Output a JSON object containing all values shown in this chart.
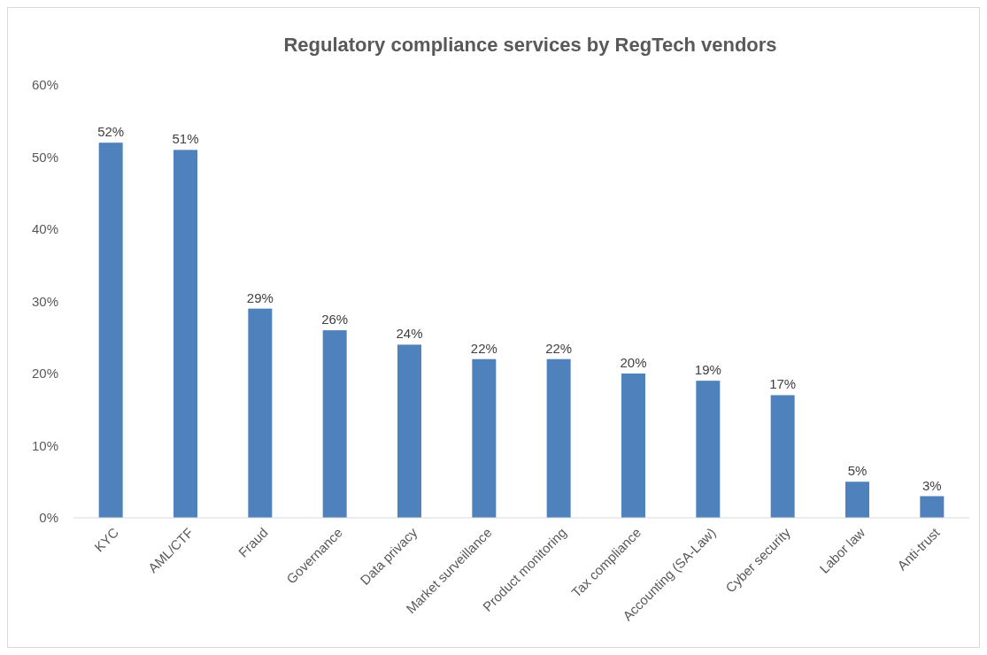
{
  "chart_data": {
    "type": "bar",
    "title": "Regulatory compliance services by RegTech vendors",
    "categories": [
      "KYC",
      "AML/CTF",
      "Fraud",
      "Governance",
      "Data privacy",
      "Market surveillance",
      "Product monitoring",
      "Tax compliance",
      "Accounting (SA-Law)",
      "Cyber security",
      "Labor law",
      "Anti-trust"
    ],
    "values": [
      52,
      51,
      29,
      26,
      24,
      22,
      22,
      20,
      19,
      17,
      5,
      3
    ],
    "value_labels": [
      "52%",
      "51%",
      "29%",
      "26%",
      "24%",
      "22%",
      "22%",
      "20%",
      "19%",
      "17%",
      "5%",
      "3%"
    ],
    "color": "#4f81bd",
    "ylim": [
      0,
      60
    ],
    "yticks": [
      {
        "value": 0,
        "label": "0%"
      },
      {
        "value": 10,
        "label": "10%"
      },
      {
        "value": 20,
        "label": "20%"
      },
      {
        "value": 30,
        "label": "30%"
      },
      {
        "value": 40,
        "label": "40%"
      },
      {
        "value": 50,
        "label": "50%"
      },
      {
        "value": 60,
        "label": "60%"
      }
    ]
  }
}
